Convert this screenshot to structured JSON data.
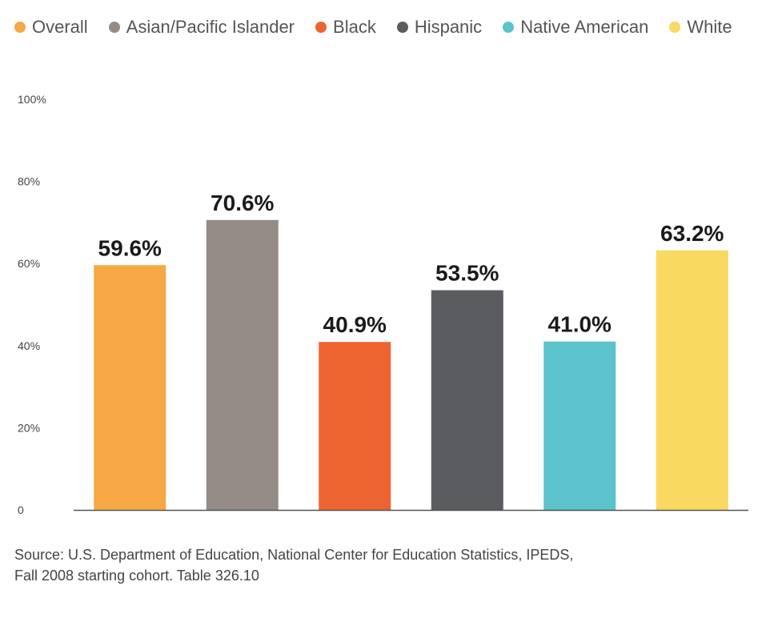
{
  "legend": [
    {
      "label": "Overall",
      "color": "#F5A843"
    },
    {
      "label": "Asian/Pacific Islander",
      "color": "#958C85"
    },
    {
      "label": "Black",
      "color": "#EE6430"
    },
    {
      "label": "Hispanic",
      "color": "#5A5C60"
    },
    {
      "label": "Native American",
      "color": "#5BC3CC"
    },
    {
      "label": "White",
      "color": "#FAD960"
    }
  ],
  "chart_data": {
    "type": "bar",
    "categories": [
      "Overall",
      "Asian/Pacific Islander",
      "Black",
      "Hispanic",
      "Native American",
      "White"
    ],
    "values": [
      59.6,
      70.6,
      40.9,
      53.5,
      41.0,
      63.2
    ],
    "data_labels": [
      "59.6%",
      "70.6%",
      "40.9%",
      "53.5%",
      "41.0%",
      "63.2%"
    ],
    "colors": [
      "#F5A843",
      "#958C85",
      "#EE6430",
      "#5A5C60",
      "#5BC3CC",
      "#FAD960"
    ],
    "ylim": [
      0,
      100
    ],
    "yticks": [
      0,
      20,
      40,
      60,
      80,
      100
    ],
    "ytick_labels": [
      "0",
      "20%",
      "40%",
      "60%",
      "80%",
      "100%"
    ],
    "grid": false,
    "legend_position": "top",
    "title": "",
    "xlabel": "",
    "ylabel": ""
  },
  "source": {
    "line1": "Source: U.S. Department of Education, National Center for Education Statistics, IPEDS,",
    "line2": "Fall 2008 starting cohort. Table 326.10"
  }
}
